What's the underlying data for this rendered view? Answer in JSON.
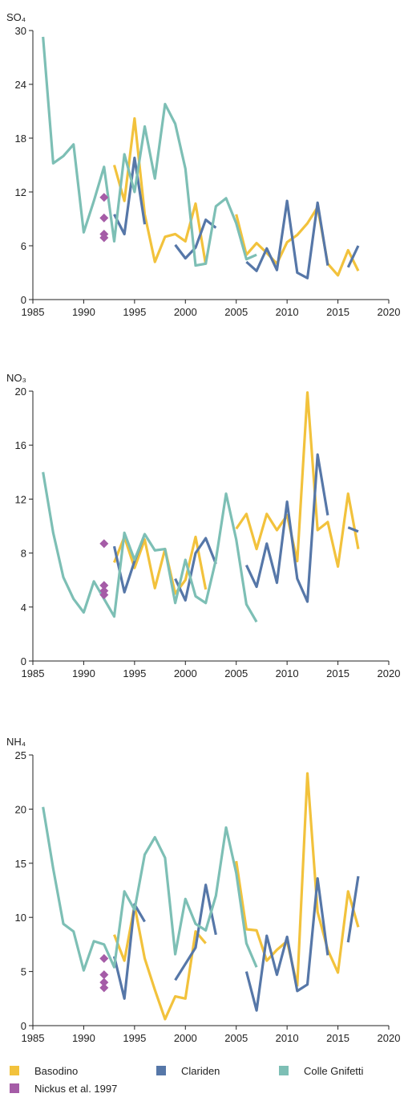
{
  "chart_data": [
    {
      "type": "line",
      "y_label": "SO₄",
      "x": [
        1986,
        1987,
        1988,
        1989,
        1990,
        1991,
        1992,
        1993,
        1994,
        1995,
        1996,
        1997,
        1998,
        1999,
        2000,
        2001,
        2002,
        2003,
        2004,
        2005,
        2006,
        2007,
        2008,
        2009,
        2010,
        2011,
        2012,
        2013,
        2014,
        2015,
        2016,
        2017
      ],
      "xlim": [
        1985,
        2020
      ],
      "xticks": [
        1985,
        1990,
        1995,
        2000,
        2005,
        2010,
        2015,
        2020
      ],
      "ylim": [
        0,
        30
      ],
      "yticks": [
        0,
        6,
        12,
        18,
        24,
        30
      ],
      "series": [
        {
          "name": "Basodino",
          "color": "#f2c23c",
          "values": [
            null,
            null,
            null,
            null,
            null,
            null,
            null,
            15,
            11,
            20.2,
            9.5,
            4.2,
            7,
            7.3,
            6.5,
            10.7,
            3.9,
            null,
            null,
            9.5,
            5.0,
            6.3,
            5.2,
            4,
            6.4,
            7.2,
            8.5,
            10.3,
            4.0,
            2.7,
            5.5,
            3.2
          ]
        },
        {
          "name": "Clariden",
          "color": "#5677a8",
          "values": [
            null,
            null,
            null,
            null,
            null,
            null,
            null,
            9.5,
            7.3,
            15.8,
            8.4,
            null,
            null,
            6.1,
            4.6,
            5.8,
            8.9,
            8,
            null,
            null,
            4.2,
            3.2,
            5.7,
            3.3,
            11,
            3,
            2.4,
            10.8,
            3.8,
            null,
            3.6,
            6
          ]
        },
        {
          "name": "Colle Gnifetti",
          "color": "#7dbfb5",
          "values": [
            29.3,
            15.2,
            16,
            17.3,
            7.5,
            11,
            14.8,
            6.5,
            16.2,
            12,
            19.3,
            13.5,
            21.8,
            19.6,
            14.6,
            3.8,
            4,
            10.4,
            11.3,
            8.5,
            4.5,
            5,
            null,
            null,
            null,
            null,
            null,
            null,
            null,
            null,
            null,
            null
          ]
        },
        {
          "name": "Nickus et al. 1997",
          "color": "#a55ca7",
          "x": [
            1992,
            1992,
            1992,
            1992
          ],
          "values": [
            11.4,
            9.1,
            7.3,
            6.9
          ]
        }
      ]
    },
    {
      "type": "line",
      "y_label": "NO₃",
      "x": [
        1986,
        1987,
        1988,
        1989,
        1990,
        1991,
        1992,
        1993,
        1994,
        1995,
        1996,
        1997,
        1998,
        1999,
        2000,
        2001,
        2002,
        2003,
        2004,
        2005,
        2006,
        2007,
        2008,
        2009,
        2010,
        2011,
        2012,
        2013,
        2014,
        2015,
        2016,
        2017
      ],
      "xlim": [
        1985,
        2020
      ],
      "xticks": [
        1985,
        1990,
        1995,
        2000,
        2005,
        2010,
        2015,
        2020
      ],
      "ylim": [
        0,
        20
      ],
      "yticks": [
        0,
        4,
        8,
        12,
        16,
        20
      ],
      "series": [
        {
          "color": "#f2c23c",
          "values": [
            null,
            null,
            null,
            null,
            null,
            null,
            null,
            7.3,
            9.2,
            6.9,
            9.0,
            5.4,
            8.3,
            5.0,
            6.0,
            9.2,
            5.3,
            null,
            null,
            9.8,
            10.9,
            8.3,
            10.9,
            9.7,
            10.8,
            7.4,
            19.9,
            9.7,
            10.3,
            7.0,
            12.4,
            8.3
          ]
        },
        {
          "color": "#5677a8",
          "values": [
            null,
            null,
            null,
            null,
            null,
            null,
            null,
            8.5,
            5.1,
            7.4,
            9.4,
            null,
            null,
            6.1,
            4.5,
            8.0,
            9.1,
            7.2,
            null,
            null,
            7.1,
            5.5,
            8.7,
            5.8,
            11.8,
            6.1,
            4.4,
            15.3,
            10.8,
            null,
            9.9,
            9.6
          ]
        },
        {
          "color": "#7dbfb5",
          "values": [
            14,
            9.5,
            6.2,
            4.6,
            3.6,
            5.9,
            4.6,
            3.3,
            9.5,
            7.5,
            9.4,
            8.2,
            8.3,
            4.3,
            7.5,
            4.8,
            4.3,
            7.5,
            12.4,
            9.0,
            4.2,
            2.9,
            null,
            null,
            null,
            null,
            null,
            null,
            null,
            null,
            null,
            null
          ]
        },
        {
          "color": "#a55ca7",
          "x": [
            1992,
            1992,
            1992,
            1992
          ],
          "values": [
            8.7,
            5.6,
            5.2,
            4.9
          ]
        }
      ]
    },
    {
      "type": "line",
      "y_label": "NH₄",
      "x": [
        1986,
        1987,
        1988,
        1989,
        1990,
        1991,
        1992,
        1993,
        1994,
        1995,
        1996,
        1997,
        1998,
        1999,
        2000,
        2001,
        2002,
        2003,
        2004,
        2005,
        2006,
        2007,
        2008,
        2009,
        2010,
        2011,
        2012,
        2013,
        2014,
        2015,
        2016,
        2017
      ],
      "xlim": [
        1985,
        2020
      ],
      "xticks": [
        1985,
        1990,
        1995,
        2000,
        2005,
        2010,
        2015,
        2020
      ],
      "ylim": [
        0,
        25
      ],
      "yticks": [
        0,
        5,
        10,
        15,
        20,
        25
      ],
      "series": [
        {
          "color": "#f2c23c",
          "values": [
            null,
            null,
            null,
            null,
            null,
            null,
            null,
            8.4,
            6.0,
            11.1,
            6.2,
            3.3,
            0.6,
            2.7,
            2.5,
            8.7,
            7.6,
            null,
            null,
            15.2,
            8.9,
            8.8,
            6.0,
            7.0,
            7.8,
            3.7,
            23.3,
            10.5,
            7.0,
            4.9,
            12.4,
            9.1
          ]
        },
        {
          "color": "#5677a8",
          "values": [
            null,
            null,
            null,
            null,
            null,
            null,
            null,
            6.4,
            2.5,
            11.2,
            9.6,
            null,
            null,
            4.2,
            5.7,
            7.2,
            13,
            8.4,
            null,
            null,
            5.0,
            1.4,
            8.3,
            4.7,
            8.2,
            3.2,
            3.8,
            13.6,
            6.5,
            null,
            7.7,
            13.8
          ]
        },
        {
          "color": "#7dbfb5",
          "values": [
            20.2,
            14.5,
            9.4,
            8.7,
            5.1,
            7.8,
            7.5,
            5.4,
            12.4,
            10.7,
            15.8,
            17.4,
            15.5,
            6.6,
            11.7,
            9.4,
            8.8,
            12,
            18.3,
            14.1,
            7.6,
            5.4,
            null,
            null,
            null,
            null,
            null,
            null,
            null,
            null,
            null,
            null
          ]
        },
        {
          "color": "#a55ca7",
          "x": [
            1992,
            1992,
            1992,
            1992
          ],
          "values": [
            6.2,
            4.7,
            4.0,
            3.5
          ]
        }
      ]
    }
  ]
}
